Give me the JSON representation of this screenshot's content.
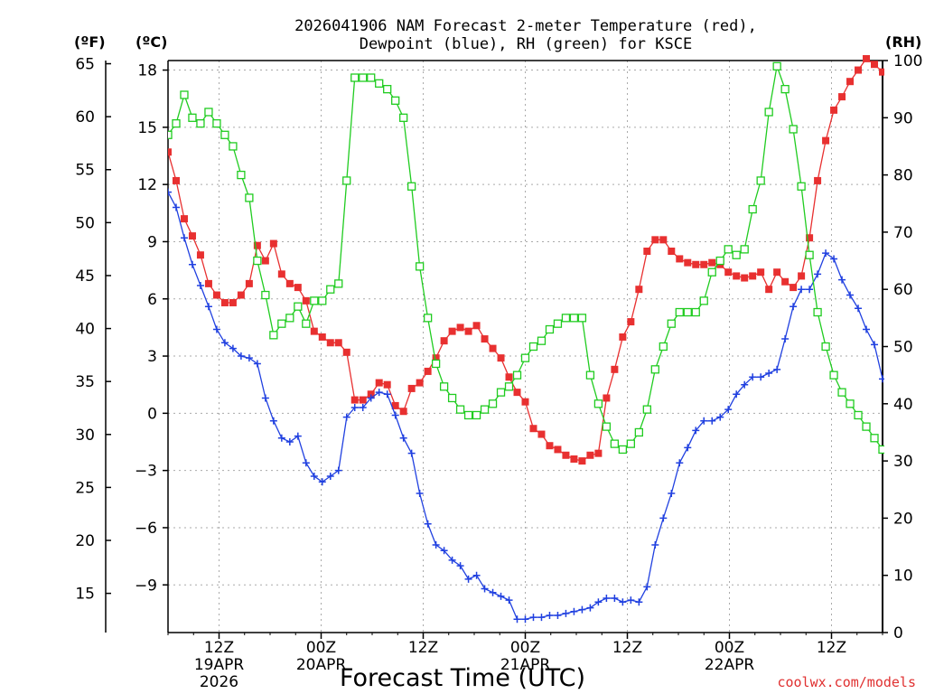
{
  "chart_data": {
    "type": "line",
    "title_line1": "2026041906 NAM Forecast 2-meter Temperature (red),",
    "title_line2": "Dewpoint (blue), RH (green) for KSCE",
    "units": {
      "fahrenheit": "(ºF)",
      "celsius": "(ºC)",
      "rh": "(RH)"
    },
    "xlabel": "Forecast Time (UTC)",
    "credit": "coolwx.com/models",
    "grid": true,
    "x_hours_start": 0,
    "x_hours_end": 84,
    "ylim_celsius": [
      -11.5,
      18.5
    ],
    "ylim_rh": [
      0,
      100
    ],
    "yticks_celsius": [
      18,
      15,
      12,
      9,
      6,
      3,
      0,
      -3,
      -6,
      -9
    ],
    "yticks_fahrenheit": [
      65,
      60,
      55,
      50,
      45,
      40,
      35,
      30,
      25,
      20,
      15
    ],
    "yticks_rh": [
      100,
      90,
      80,
      70,
      60,
      50,
      40,
      30,
      20,
      10,
      0
    ],
    "x_ticks": [
      {
        "hour": 6,
        "label": "12Z",
        "date": "19APR",
        "year": "2026"
      },
      {
        "hour": 18,
        "label": "00Z",
        "date": "20APR",
        "year": ""
      },
      {
        "hour": 30,
        "label": "12Z",
        "date": "",
        "year": ""
      },
      {
        "hour": 42,
        "label": "00Z",
        "date": "21APR",
        "year": ""
      },
      {
        "hour": 54,
        "label": "12Z",
        "date": "",
        "year": ""
      },
      {
        "hour": 66,
        "label": "00Z",
        "date": "22APR",
        "year": ""
      },
      {
        "hour": 78,
        "label": "12Z",
        "date": "",
        "year": ""
      }
    ],
    "series": [
      {
        "name": "Temperature",
        "unit": "C",
        "color": "#e83030",
        "marker": "square-filled",
        "values": [
          13.7,
          12.2,
          10.2,
          9.3,
          8.3,
          6.8,
          6.2,
          5.8,
          5.8,
          6.2,
          6.8,
          8.8,
          8.0,
          8.9,
          7.3,
          6.8,
          6.6,
          5.9,
          4.3,
          4.0,
          3.7,
          3.7,
          3.2,
          0.7,
          0.7,
          1.0,
          1.6,
          1.5,
          0.4,
          0.1,
          1.3,
          1.6,
          2.2,
          2.9,
          3.8,
          4.3,
          4.5,
          4.3,
          4.6,
          3.9,
          3.4,
          2.9,
          1.9,
          1.1,
          0.6,
          -0.8,
          -1.1,
          -1.7,
          -1.9,
          -2.2,
          -2.4,
          -2.5,
          -2.2,
          -2.1,
          0.8,
          2.3,
          4.0,
          4.8,
          6.5,
          8.5,
          9.1,
          9.1,
          8.5,
          8.1,
          7.9,
          7.8,
          7.8,
          7.9,
          7.8,
          7.4,
          7.2,
          7.1,
          7.2,
          7.4,
          6.5,
          7.4,
          6.9,
          6.6,
          7.2,
          9.2,
          12.2,
          14.3,
          15.9,
          16.6,
          17.4,
          18.0,
          18.6,
          18.3,
          17.9
        ]
      },
      {
        "name": "Dewpoint",
        "unit": "C",
        "color": "#2040e0",
        "marker": "plus",
        "values": [
          11.6,
          10.8,
          9.2,
          7.8,
          6.7,
          5.6,
          4.4,
          3.7,
          3.4,
          3.0,
          2.9,
          2.6,
          0.8,
          -0.4,
          -1.3,
          -1.5,
          -1.2,
          -2.6,
          -3.3,
          -3.6,
          -3.3,
          -3.0,
          -0.2,
          0.3,
          0.3,
          0.8,
          1.1,
          1.0,
          -0.1,
          -1.3,
          -2.1,
          -4.2,
          -5.8,
          -6.9,
          -7.2,
          -7.7,
          -8.0,
          -8.7,
          -8.5,
          -9.2,
          -9.4,
          -9.6,
          -9.8,
          -10.8,
          -10.8,
          -10.7,
          -10.7,
          -10.6,
          -10.6,
          -10.5,
          -10.4,
          -10.3,
          -10.2,
          -9.9,
          -9.7,
          -9.7,
          -9.9,
          -9.8,
          -9.9,
          -9.1,
          -6.9,
          -5.5,
          -4.2,
          -2.6,
          -1.8,
          -0.9,
          -0.4,
          -0.4,
          -0.2,
          0.2,
          1.0,
          1.5,
          1.9,
          1.9,
          2.1,
          2.3,
          3.9,
          5.6,
          6.5,
          6.5,
          7.3,
          8.4,
          8.1,
          7.0,
          6.2,
          5.5,
          4.4,
          3.6,
          1.8
        ]
      },
      {
        "name": "RH",
        "unit": "%",
        "color": "#20cc20",
        "marker": "square-open",
        "values": [
          87,
          89,
          94,
          90,
          89,
          91,
          89,
          87,
          85,
          80,
          76,
          65,
          59,
          52,
          54,
          55,
          57,
          54,
          58,
          58,
          60,
          61,
          79,
          97,
          97,
          97,
          96,
          95,
          93,
          90,
          78,
          64,
          55,
          47,
          43,
          41,
          39,
          38,
          38,
          39,
          40,
          42,
          43,
          45,
          48,
          50,
          51,
          53,
          54,
          55,
          55,
          55,
          45,
          40,
          36,
          33,
          32,
          33,
          35,
          39,
          46,
          50,
          54,
          56,
          56,
          56,
          58,
          63,
          65,
          67,
          66,
          67,
          74,
          79,
          91,
          99,
          95,
          88,
          78,
          66,
          56,
          50,
          45,
          42,
          40,
          38,
          36,
          34,
          32
        ]
      }
    ]
  }
}
